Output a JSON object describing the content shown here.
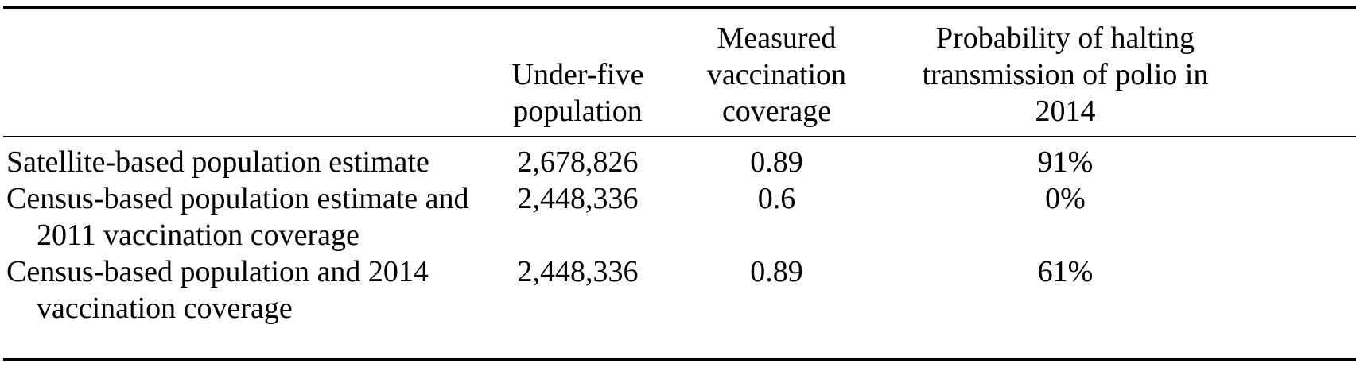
{
  "table": {
    "headers": {
      "row_label": "",
      "under_five": "Under-five population",
      "coverage": "Measured vaccination coverage",
      "probability": "Probability of halting transmission of polio in 2014"
    },
    "rows": [
      {
        "label": "Satellite-based population estimate",
        "under_five_population": "2,678,826",
        "vaccination_coverage": "0.89",
        "probability": "91%"
      },
      {
        "label": "Census-based population estimate and 2011 vaccination coverage",
        "under_five_population": "2,448,336",
        "vaccination_coverage": "0.6",
        "probability": "0%"
      },
      {
        "label": "Census-based population and 2014 vaccination coverage",
        "under_five_population": "2,448,336",
        "vaccination_coverage": "0.89",
        "probability": "61%"
      }
    ]
  },
  "chart_data": {
    "type": "table",
    "columns": [
      "",
      "Under-five population",
      "Measured vaccination coverage",
      "Probability of halting transmission of polio in 2014"
    ],
    "rows": [
      [
        "Satellite-based population estimate",
        "2,678,826",
        "0.89",
        "91%"
      ],
      [
        "Census-based population estimate and 2011 vaccination coverage",
        "2,448,336",
        "0.6",
        "0%"
      ],
      [
        "Census-based population and 2014 vaccination coverage",
        "2,448,336",
        "0.89",
        "61%"
      ]
    ]
  }
}
